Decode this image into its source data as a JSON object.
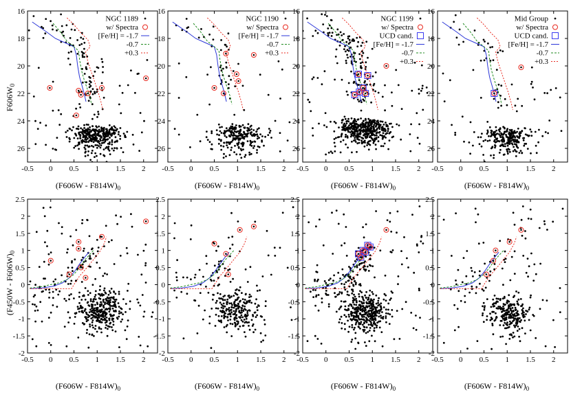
{
  "figure": {
    "description_labels": {
      "x_axis_label": "(F606W - F814W)",
      "x_axis_subscript": "0",
      "top_y_axis_label": "F606W",
      "top_y_axis_subscript": "0",
      "bottom_y_axis_label": "(F450W - F606W)",
      "bottom_y_axis_subscript": "0"
    },
    "colors": {
      "points": "#000000",
      "spectra": "#e8281e",
      "ucd": "#3a3af0",
      "iso_metal_poor": "#2a35d8",
      "iso_mid": "#1f8a1f",
      "iso_metal_rich": "#e8281e"
    }
  },
  "chart_data": [
    {
      "panel": "top-1",
      "type": "scatter",
      "xlim": [
        -0.5,
        2.3
      ],
      "ylim": [
        27,
        16
      ],
      "grid": false,
      "xticks": [
        "-0.5",
        "0",
        "0.5",
        "1",
        "1.5",
        "2"
      ],
      "yticks": [
        "16",
        "18",
        "20",
        "22",
        "24",
        "26"
      ],
      "legend": {
        "placement": "top-right",
        "entries": [
          "NGC 1189",
          "w/ Spectra",
          "[Fe/H] = -1.7",
          "-0.7",
          "+0.3"
        ]
      },
      "spectra": [
        [
          -0.02,
          21.6
        ],
        [
          0.6,
          21.8
        ],
        [
          0.65,
          22.1
        ],
        [
          0.55,
          23.6
        ],
        [
          1.1,
          21.6
        ],
        [
          2.05,
          20.9
        ],
        [
          0.8,
          22.0
        ]
      ],
      "ucd": [],
      "seed": 11,
      "n_rgb": 80,
      "n_field": 60,
      "n_clump": 330,
      "clump_center": [
        1.0,
        25.0
      ]
    },
    {
      "panel": "top-2",
      "type": "scatter",
      "xlim": [
        -0.5,
        2.3
      ],
      "ylim": [
        27,
        16
      ],
      "grid": false,
      "xticks": [
        "-0.5",
        "0",
        "0.5",
        "1",
        "1.5",
        "2"
      ],
      "yticks": [
        "16",
        "18",
        "20",
        "22",
        "24",
        "26"
      ],
      "legend": {
        "placement": "top-right",
        "entries": [
          "NGC 1190",
          "w/ Spectra",
          "[Fe/H] = -1.7",
          "-0.7",
          "+0.3"
        ]
      },
      "spectra": [
        [
          0.75,
          19.1
        ],
        [
          1.35,
          19.2
        ],
        [
          0.98,
          20.6
        ],
        [
          1.02,
          21.1
        ],
        [
          0.5,
          21.6
        ],
        [
          0.7,
          22.0
        ]
      ],
      "ucd": [],
      "seed": 23,
      "n_rgb": 40,
      "n_field": 35,
      "n_clump": 230,
      "clump_center": [
        1.0,
        25.0
      ]
    },
    {
      "panel": "top-3",
      "type": "scatter",
      "xlim": [
        -0.5,
        2.3
      ],
      "ylim": [
        27,
        16
      ],
      "grid": false,
      "xticks": [
        "-0.5",
        "0",
        "0.5",
        "1",
        "1.5",
        "2"
      ],
      "yticks": [
        "16",
        "18",
        "20",
        "22",
        "24",
        "26"
      ],
      "legend": {
        "placement": "top-right",
        "entries": [
          "NGC 1199",
          "w/ Spectra",
          "UCD cand.",
          "[Fe/H] = -1.7",
          "-0.7",
          "+0.3"
        ]
      },
      "spectra": [
        [
          0.7,
          20.6
        ],
        [
          0.9,
          20.7
        ],
        [
          0.8,
          21.6
        ],
        [
          0.72,
          21.9
        ],
        [
          0.62,
          22.1
        ],
        [
          0.85,
          22.0
        ],
        [
          1.3,
          20.0
        ]
      ],
      "ucd": [
        [
          0.7,
          20.6
        ],
        [
          0.9,
          20.7
        ],
        [
          0.8,
          21.6
        ],
        [
          0.72,
          21.9
        ],
        [
          0.62,
          22.1
        ],
        [
          0.85,
          22.0
        ]
      ],
      "seed": 37,
      "n_rgb": 130,
      "n_field": 70,
      "n_clump": 420,
      "clump_center": [
        0.85,
        24.6
      ]
    },
    {
      "panel": "top-4",
      "type": "scatter",
      "xlim": [
        -0.5,
        2.3
      ],
      "ylim": [
        27,
        16
      ],
      "grid": false,
      "xticks": [
        "-0.5",
        "0",
        "0.5",
        "1",
        "1.5",
        "2"
      ],
      "yticks": [
        "16",
        "18",
        "20",
        "22",
        "24",
        "26"
      ],
      "legend": {
        "placement": "top-right",
        "entries": [
          "Mid Group",
          "w/ Spectra",
          "UCD cand.",
          "[Fe/H] = -1.7",
          "-0.7",
          "+0.3"
        ]
      },
      "spectra": [
        [
          0.72,
          22.0
        ],
        [
          1.3,
          20.1
        ]
      ],
      "ucd": [
        [
          0.72,
          22.0
        ]
      ],
      "seed": 53,
      "n_rgb": 35,
      "n_field": 45,
      "n_clump": 240,
      "clump_center": [
        1.0,
        25.2
      ]
    },
    {
      "panel": "bottom-1",
      "type": "scatter",
      "xlim": [
        -0.5,
        2.3
      ],
      "ylim": [
        -2,
        2.5
      ],
      "grid": false,
      "xticks": [
        "-0.5",
        "0",
        "0.5",
        "1",
        "1.5",
        "2"
      ],
      "yticks": [
        "-2",
        "-1.5",
        "-1",
        "-0.5",
        "0",
        "0.5",
        "1",
        "1.5",
        "2",
        "2.5"
      ],
      "spectra": [
        [
          0.0,
          0.7
        ],
        [
          0.6,
          1.25
        ],
        [
          0.6,
          1.05
        ],
        [
          0.65,
          0.5
        ],
        [
          1.1,
          1.4
        ],
        [
          2.05,
          1.85
        ],
        [
          0.75,
          0.2
        ],
        [
          0.4,
          0.3
        ]
      ],
      "ucd": [],
      "seed": 61,
      "n_rgb": 70,
      "n_field": 110,
      "n_clump": 310,
      "clump_center": [
        1.05,
        -0.75
      ]
    },
    {
      "panel": "bottom-2",
      "type": "scatter",
      "xlim": [
        -0.5,
        2.3
      ],
      "ylim": [
        -2,
        2.5
      ],
      "grid": false,
      "xticks": [
        "-0.5",
        "0",
        "0.5",
        "1",
        "1.5",
        "2"
      ],
      "yticks": [
        "-2",
        "-1.5",
        "-1",
        "-0.5",
        "0",
        "0.5",
        "1",
        "1.5",
        "2",
        "2.5"
      ],
      "spectra": [
        [
          0.5,
          1.2
        ],
        [
          1.05,
          1.6
        ],
        [
          1.35,
          1.7
        ],
        [
          0.75,
          0.9
        ],
        [
          0.8,
          0.3
        ]
      ],
      "ucd": [],
      "seed": 73,
      "n_rgb": 40,
      "n_field": 60,
      "n_clump": 230,
      "clump_center": [
        1.0,
        -0.75
      ]
    },
    {
      "panel": "bottom-3",
      "type": "scatter",
      "xlim": [
        -0.5,
        2.3
      ],
      "ylim": [
        -2,
        2.5
      ],
      "grid": false,
      "xticks": [
        "-0.5",
        "0",
        "0.5",
        "1",
        "1.5",
        "2"
      ],
      "yticks": [
        "-2",
        "-1.5",
        "-1",
        "-0.5",
        "0",
        "0.5",
        "1",
        "1.5",
        "2",
        "2.5"
      ],
      "spectra": [
        [
          0.7,
          0.9
        ],
        [
          0.8,
          1.0
        ],
        [
          0.9,
          1.15
        ],
        [
          0.75,
          0.8
        ],
        [
          0.85,
          0.95
        ],
        [
          0.95,
          1.1
        ],
        [
          1.3,
          1.6
        ]
      ],
      "ucd": [
        [
          0.7,
          0.9
        ],
        [
          0.8,
          1.0
        ],
        [
          0.9,
          1.15
        ],
        [
          0.75,
          0.8
        ],
        [
          0.85,
          0.95
        ],
        [
          0.95,
          1.1
        ]
      ],
      "seed": 89,
      "n_rgb": 120,
      "n_field": 90,
      "n_clump": 360,
      "clump_center": [
        0.85,
        -0.8
      ]
    },
    {
      "panel": "bottom-4",
      "type": "scatter",
      "xlim": [
        -0.5,
        2.3
      ],
      "ylim": [
        -2,
        2.5
      ],
      "grid": false,
      "xticks": [
        "-0.5",
        "0",
        "0.5",
        "1",
        "1.5",
        "2"
      ],
      "yticks": [
        "-2",
        "-1.5",
        "-1",
        "-0.5",
        "0",
        "0.5",
        "1",
        "1.5",
        "2",
        "2.5"
      ],
      "spectra": [
        [
          1.3,
          1.6
        ],
        [
          1.05,
          1.25
        ],
        [
          0.75,
          1.0
        ],
        [
          0.55,
          0.3
        ],
        [
          0.7,
          0.7
        ]
      ],
      "ucd": [],
      "seed": 97,
      "n_rgb": 40,
      "n_field": 70,
      "n_clump": 240,
      "clump_center": [
        1.0,
        -0.85
      ]
    }
  ],
  "isochrones": {
    "top": {
      "metal_poor": [
        [
          -0.4,
          16.8
        ],
        [
          -0.1,
          17.5
        ],
        [
          0.1,
          18.0
        ],
        [
          0.3,
          18.3
        ],
        [
          0.5,
          18.6
        ],
        [
          0.55,
          19.2
        ],
        [
          0.58,
          20.0
        ],
        [
          0.62,
          20.8
        ],
        [
          0.67,
          21.4
        ],
        [
          0.72,
          22.0
        ],
        [
          0.76,
          22.6
        ]
      ],
      "mid": [
        [
          0.05,
          16.9
        ],
        [
          0.2,
          17.5
        ],
        [
          0.35,
          18.2
        ],
        [
          0.5,
          18.6
        ],
        [
          0.6,
          18.9
        ],
        [
          0.62,
          19.5
        ],
        [
          0.66,
          20.3
        ],
        [
          0.72,
          21.0
        ],
        [
          0.78,
          21.6
        ],
        [
          0.84,
          22.2
        ],
        [
          0.88,
          22.8
        ]
      ],
      "metal_rich": [
        [
          0.35,
          16.5
        ],
        [
          0.5,
          17.0
        ],
        [
          0.65,
          17.6
        ],
        [
          0.8,
          18.1
        ],
        [
          0.85,
          18.6
        ],
        [
          0.75,
          19.0
        ],
        [
          0.8,
          19.7
        ],
        [
          0.88,
          20.5
        ],
        [
          0.95,
          21.2
        ],
        [
          1.02,
          21.9
        ],
        [
          1.08,
          22.6
        ],
        [
          1.12,
          23.2
        ]
      ]
    },
    "bottom": {
      "metal_poor": [
        [
          -0.45,
          -0.12
        ],
        [
          -0.2,
          -0.1
        ],
        [
          0.05,
          -0.05
        ],
        [
          0.25,
          0.05
        ],
        [
          0.4,
          0.2
        ],
        [
          0.52,
          0.4
        ],
        [
          0.62,
          0.6
        ],
        [
          0.72,
          0.78
        ],
        [
          0.82,
          0.95
        ]
      ],
      "mid": [
        [
          -0.45,
          -0.1
        ],
        [
          -0.2,
          -0.06
        ],
        [
          0.0,
          0.0
        ],
        [
          0.2,
          0.06
        ],
        [
          0.35,
          0.15
        ],
        [
          0.5,
          0.3
        ],
        [
          0.62,
          0.5
        ],
        [
          0.72,
          0.7
        ],
        [
          0.82,
          0.85
        ],
        [
          0.92,
          1.0
        ]
      ],
      "metal_rich": [
        [
          -0.45,
          -0.12
        ],
        [
          0.0,
          -0.12
        ],
        [
          0.45,
          -0.12
        ],
        [
          0.5,
          0.0
        ],
        [
          0.55,
          0.1
        ],
        [
          0.62,
          0.25
        ],
        [
          0.75,
          0.45
        ],
        [
          0.9,
          0.7
        ],
        [
          1.05,
          0.95
        ],
        [
          1.15,
          1.2
        ],
        [
          1.2,
          1.4
        ]
      ]
    }
  }
}
